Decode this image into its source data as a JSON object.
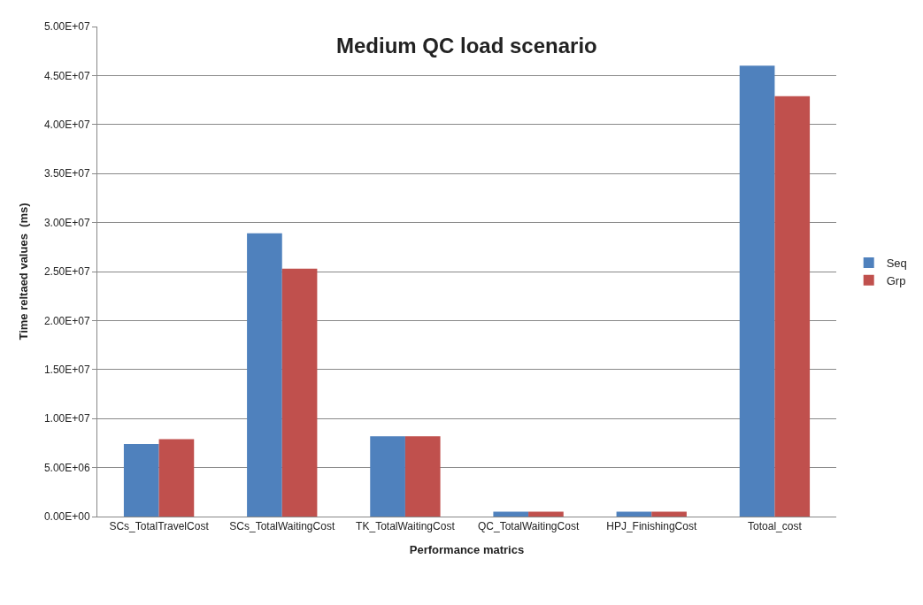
{
  "chart_data": {
    "type": "bar",
    "title": "Medium QC load scenario",
    "xlabel": "Performance matrics",
    "ylabel": "Time reltaed values  (ms)",
    "categories": [
      "SCs_TotalTravelCost",
      "SCs_TotalWaitingCost",
      "TK_TotalWaitingCost",
      "QC_TotalWaitingCost",
      "HPJ_FinishingCost",
      "Totoal_cost"
    ],
    "series": [
      {
        "name": "Seq",
        "color": "#4f81bd",
        "values": [
          7400000,
          28900000,
          8200000,
          500000,
          500000,
          46000000
        ]
      },
      {
        "name": "Grp",
        "color": "#c0504d",
        "values": [
          7900000,
          25300000,
          8200000,
          500000,
          500000,
          42900000
        ]
      }
    ],
    "ylim": [
      0,
      50000000
    ],
    "yticks": [
      {
        "value": 0,
        "label": "0.00E+00"
      },
      {
        "value": 5000000,
        "label": "5.00E+06"
      },
      {
        "value": 10000000,
        "label": "1.00E+07"
      },
      {
        "value": 15000000,
        "label": "1.50E+07"
      },
      {
        "value": 20000000,
        "label": "2.00E+07"
      },
      {
        "value": 25000000,
        "label": "2.50E+07"
      },
      {
        "value": 30000000,
        "label": "3.00E+07"
      },
      {
        "value": 35000000,
        "label": "3.50E+07"
      },
      {
        "value": 40000000,
        "label": "4.00E+07"
      },
      {
        "value": 45000000,
        "label": "4.50E+07"
      },
      {
        "value": 50000000,
        "label": "5.00E+07"
      }
    ],
    "grid": "y",
    "legend": "right"
  }
}
